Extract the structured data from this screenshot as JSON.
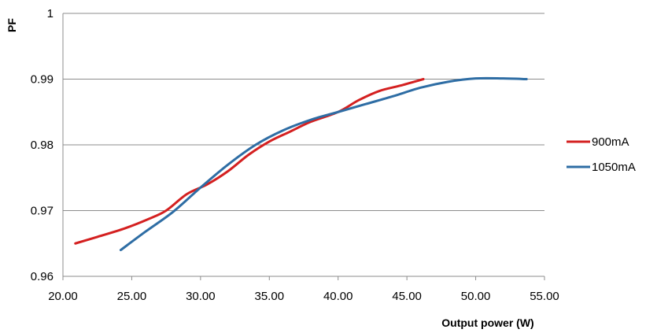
{
  "chart_data": {
    "type": "line",
    "title": "",
    "xlabel": "Output power (W)",
    "ylabel": "PF",
    "xlim": [
      20,
      55
    ],
    "ylim": [
      0.96,
      1
    ],
    "x_ticks": [
      "20.00",
      "25.00",
      "30.00",
      "35.00",
      "40.00",
      "45.00",
      "50.00",
      "55.00"
    ],
    "y_ticks": [
      "0.96",
      "0.97",
      "0.98",
      "0.99",
      "1"
    ],
    "grid": "horizontal",
    "legend_position": "right",
    "series": [
      {
        "name": "900mA",
        "color": "#d42020",
        "points": [
          [
            20.9,
            0.965
          ],
          [
            22.5,
            0.966
          ],
          [
            24.5,
            0.9673
          ],
          [
            26.2,
            0.9687
          ],
          [
            27.5,
            0.97
          ],
          [
            29.0,
            0.9725
          ],
          [
            30.5,
            0.974
          ],
          [
            32.0,
            0.976
          ],
          [
            33.5,
            0.9785
          ],
          [
            35.0,
            0.9805
          ],
          [
            36.5,
            0.982
          ],
          [
            38.0,
            0.9835
          ],
          [
            40.0,
            0.985
          ],
          [
            41.5,
            0.9868
          ],
          [
            43.0,
            0.9882
          ],
          [
            44.5,
            0.989
          ],
          [
            46.2,
            0.99
          ]
        ]
      },
      {
        "name": "1050mA",
        "color": "#2e6da4",
        "points": [
          [
            24.2,
            0.964
          ],
          [
            26.0,
            0.9668
          ],
          [
            28.0,
            0.9698
          ],
          [
            30.0,
            0.9735
          ],
          [
            32.0,
            0.977
          ],
          [
            34.0,
            0.98
          ],
          [
            36.0,
            0.9822
          ],
          [
            38.0,
            0.9838
          ],
          [
            40.0,
            0.985
          ],
          [
            42.0,
            0.9862
          ],
          [
            44.0,
            0.9874
          ],
          [
            46.0,
            0.9887
          ],
          [
            48.0,
            0.9896
          ],
          [
            50.0,
            0.9901
          ],
          [
            52.0,
            0.9901
          ],
          [
            53.7,
            0.99
          ]
        ]
      }
    ]
  }
}
